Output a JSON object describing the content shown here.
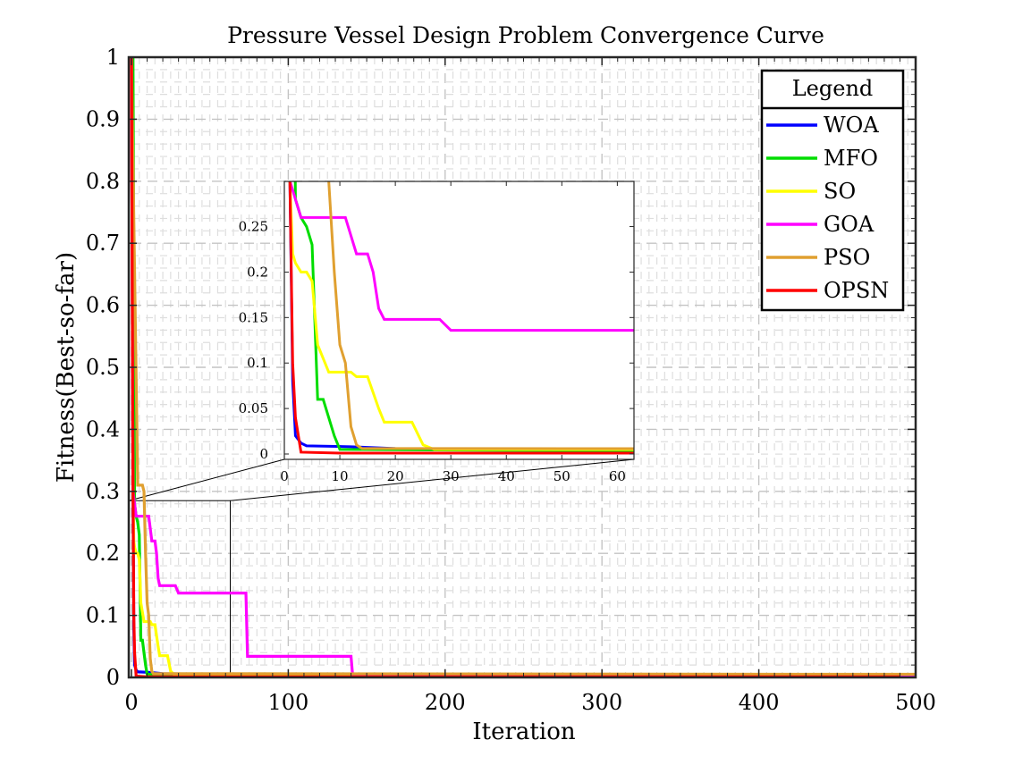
{
  "chart_data": {
    "type": "line",
    "title": "Pressure Vessel Design Problem Convergence Curve",
    "xlabel": "Iteration",
    "ylabel": "Fitness(Best-so-far)",
    "xlim": [
      0,
      500
    ],
    "ylim": [
      0,
      1
    ],
    "xticks": [
      0,
      100,
      200,
      300,
      400,
      500
    ],
    "yticks": [
      0,
      0.1,
      0.2,
      0.3,
      0.4,
      0.5,
      0.6,
      0.7,
      0.8,
      0.9,
      1
    ],
    "xtick_labels": [
      "0",
      "100",
      "200",
      "300",
      "400",
      "500"
    ],
    "ytick_labels": [
      "0",
      "0.1",
      "0.2",
      "0.3",
      "0.4",
      "0.5",
      "0.6",
      "0.7",
      "0.8",
      "0.9",
      "1"
    ],
    "grid": true,
    "legend": {
      "title": "Legend",
      "placement": "top-right",
      "entries": [
        "WOA",
        "MFO",
        "SO",
        "GOA",
        "PSO",
        "OPSN"
      ]
    },
    "series": [
      {
        "name": "WOA",
        "color": "#0000ff",
        "points": [
          [
            0,
            1
          ],
          [
            1,
            0.3
          ],
          [
            1.5,
            0.08
          ],
          [
            2,
            0.02
          ],
          [
            3,
            0.012
          ],
          [
            4,
            0.009
          ],
          [
            12,
            0.008
          ],
          [
            20,
            0.006
          ],
          [
            50,
            0.005
          ],
          [
            500,
            0.004
          ]
        ]
      },
      {
        "name": "MFO",
        "color": "#00dd00",
        "points": [
          [
            0,
            1
          ],
          [
            1,
            1
          ],
          [
            2,
            0.28
          ],
          [
            3,
            0.26
          ],
          [
            4,
            0.25
          ],
          [
            5,
            0.23
          ],
          [
            6,
            0.06
          ],
          [
            7,
            0.06
          ],
          [
            8,
            0.04
          ],
          [
            9,
            0.02
          ],
          [
            10,
            0.005
          ],
          [
            40,
            0.004
          ],
          [
            500,
            0.003
          ]
        ]
      },
      {
        "name": "SO",
        "color": "#ffff00",
        "points": [
          [
            0,
            1
          ],
          [
            1,
            0.3
          ],
          [
            1.5,
            0.22
          ],
          [
            2,
            0.21
          ],
          [
            3,
            0.2
          ],
          [
            4,
            0.2
          ],
          [
            5,
            0.19
          ],
          [
            6,
            0.12
          ],
          [
            8,
            0.09
          ],
          [
            12,
            0.09
          ],
          [
            13,
            0.085
          ],
          [
            15,
            0.085
          ],
          [
            17,
            0.05
          ],
          [
            18,
            0.035
          ],
          [
            23,
            0.035
          ],
          [
            25,
            0.01
          ],
          [
            27,
            0.005
          ],
          [
            500,
            0.004
          ]
        ]
      },
      {
        "name": "GOA",
        "color": "#ff00ff",
        "points": [
          [
            0,
            1
          ],
          [
            1,
            0.3
          ],
          [
            2,
            0.28
          ],
          [
            3,
            0.26
          ],
          [
            11,
            0.26
          ],
          [
            13,
            0.22
          ],
          [
            15,
            0.22
          ],
          [
            16,
            0.2
          ],
          [
            17,
            0.16
          ],
          [
            18,
            0.148
          ],
          [
            28,
            0.148
          ],
          [
            30,
            0.136
          ],
          [
            73,
            0.136
          ],
          [
            74,
            0.034
          ],
          [
            140,
            0.034
          ],
          [
            141,
            0.004
          ],
          [
            340,
            0.004
          ],
          [
            341,
            0.001
          ],
          [
            500,
            0.001
          ]
        ]
      },
      {
        "name": "PSO",
        "color": "#e0a030",
        "points": [
          [
            0,
            1
          ],
          [
            4,
            0.31
          ],
          [
            7,
            0.31
          ],
          [
            8,
            0.3
          ],
          [
            9,
            0.2
          ],
          [
            10,
            0.12
          ],
          [
            11,
            0.1
          ],
          [
            12,
            0.03
          ],
          [
            13,
            0.01
          ],
          [
            14,
            0.006
          ],
          [
            500,
            0.005
          ]
        ]
      },
      {
        "name": "OPSN",
        "color": "#ff0000",
        "points": [
          [
            0,
            1
          ],
          [
            1,
            0.3
          ],
          [
            1.5,
            0.1
          ],
          [
            2,
            0.04
          ],
          [
            3,
            0.002
          ],
          [
            10,
            0.001
          ],
          [
            490,
            0.001
          ]
        ]
      }
    ],
    "inset": {
      "xlim": [
        0,
        63
      ],
      "ylim": [
        0,
        0.28
      ],
      "xticks": [
        0,
        10,
        20,
        30,
        40,
        50,
        60
      ],
      "yticks": [
        0,
        0.05,
        0.1,
        0.15,
        0.2,
        0.25
      ],
      "xtick_labels": [
        "0",
        "10",
        "20",
        "30",
        "40",
        "50",
        "60"
      ],
      "ytick_labels": [
        "0",
        "0.05",
        "0.1",
        "0.15",
        "0.2",
        "0.25"
      ],
      "zoom_region": {
        "x": [
          0,
          63
        ],
        "y": [
          0,
          0.285
        ]
      }
    }
  }
}
